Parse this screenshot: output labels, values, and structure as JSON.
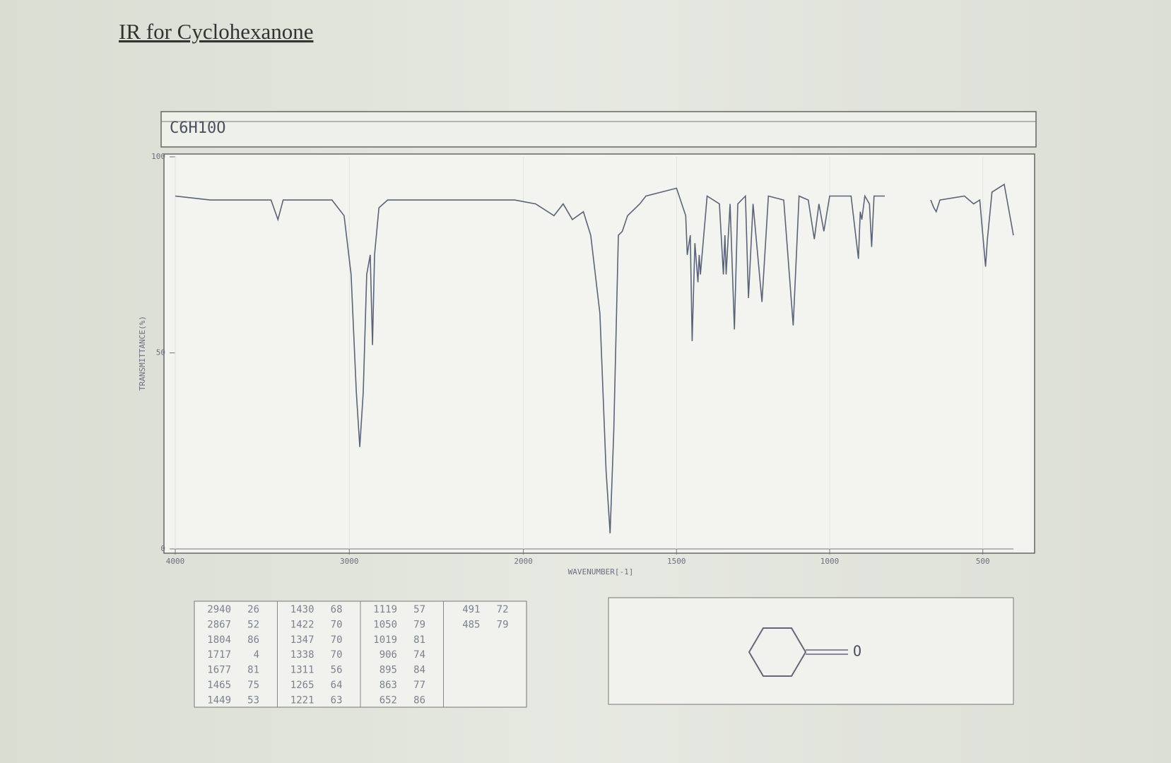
{
  "title": "IR for Cyclohexanone",
  "chart_data": {
    "type": "line",
    "formula": "C6H10O",
    "x_label": "WAVENUMBER[-1]",
    "y_label": "TRANSMITTANCE(%)",
    "xlim": [
      4000,
      400
    ],
    "xticks": [
      4000,
      3000,
      2000,
      1500,
      1000,
      500
    ],
    "ylim": [
      0,
      100
    ],
    "yticks": [
      0,
      50,
      100
    ],
    "series": [
      {
        "name": "Cyclohexanone",
        "color": "#5a6478",
        "x": [
          4000,
          3800,
          3450,
          3410,
          3380,
          3100,
          3030,
          2990,
          2960,
          2940,
          2920,
          2900,
          2880,
          2867,
          2855,
          2830,
          2780,
          2500,
          2200,
          2050,
          1960,
          1900,
          1870,
          1840,
          1804,
          1780,
          1750,
          1730,
          1717,
          1705,
          1690,
          1677,
          1660,
          1620,
          1600,
          1500,
          1470,
          1465,
          1455,
          1449,
          1440,
          1430,
          1426,
          1422,
          1400,
          1360,
          1347,
          1342,
          1338,
          1325,
          1311,
          1300,
          1275,
          1265,
          1250,
          1221,
          1200,
          1150,
          1119,
          1100,
          1070,
          1050,
          1035,
          1019,
          1000,
          960,
          930,
          906,
          900,
          895,
          885,
          870,
          863,
          855,
          820,
          800,
          670,
          660,
          652,
          640,
          560,
          530,
          510,
          491,
          485,
          470,
          430,
          400
        ],
        "values": [
          90,
          89,
          89,
          84,
          89,
          89,
          85,
          70,
          40,
          26,
          40,
          70,
          75,
          52,
          75,
          87,
          89,
          89,
          89,
          89,
          88,
          85,
          88,
          84,
          86,
          80,
          60,
          20,
          4,
          30,
          80,
          81,
          85,
          88,
          90,
          92,
          85,
          75,
          80,
          53,
          78,
          68,
          75,
          70,
          90,
          88,
          70,
          80,
          70,
          88,
          56,
          88,
          90,
          64,
          88,
          63,
          90,
          89,
          57,
          90,
          89,
          79,
          88,
          81,
          90,
          90,
          90,
          74,
          86,
          84,
          90,
          88,
          77,
          90,
          90,
          null,
          89,
          87,
          86,
          89,
          90,
          88,
          89,
          72,
          79,
          91,
          93,
          80
        ]
      }
    ]
  },
  "peak_table": {
    "rows": [
      [
        2940,
        26
      ],
      [
        2867,
        52
      ],
      [
        1804,
        86
      ],
      [
        1717,
        4
      ],
      [
        1677,
        81
      ],
      [
        1465,
        75
      ],
      [
        1449,
        53
      ],
      [
        1430,
        68
      ],
      [
        1422,
        70
      ],
      [
        1347,
        70
      ],
      [
        1338,
        70
      ],
      [
        1311,
        56
      ],
      [
        1265,
        64
      ],
      [
        1221,
        63
      ],
      [
        1119,
        57
      ],
      [
        1050,
        79
      ],
      [
        1019,
        81
      ],
      [
        906,
        74
      ],
      [
        895,
        84
      ],
      [
        863,
        77
      ],
      [
        652,
        86
      ],
      [
        491,
        72
      ],
      [
        485,
        79
      ]
    ]
  },
  "structure": {
    "atom": "O"
  }
}
